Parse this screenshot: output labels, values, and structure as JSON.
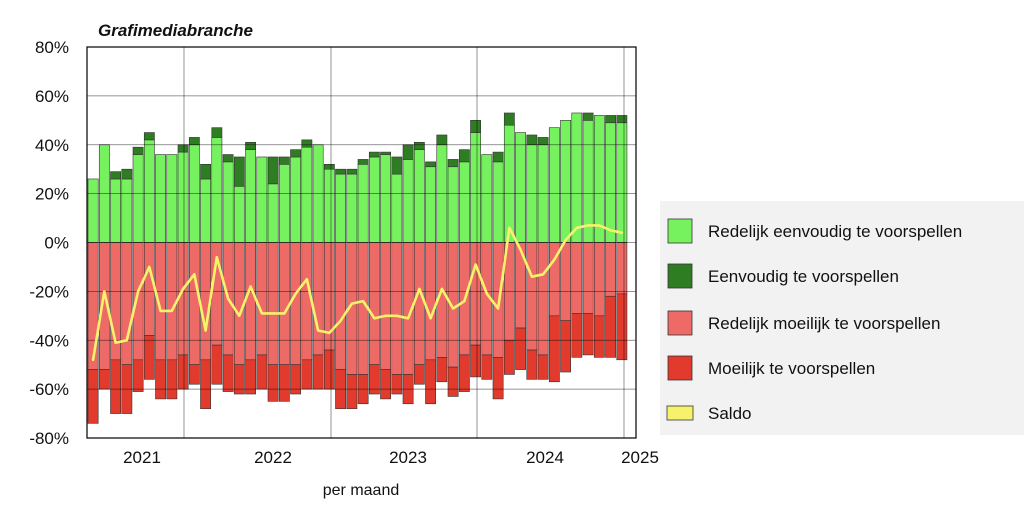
{
  "chart_data": {
    "type": "bar",
    "title": "Grafimediabranche",
    "xlabel": "per maand",
    "ylabel": "",
    "ylim": [
      -80,
      80
    ],
    "y_ticks": [
      "80%",
      "60%",
      "40%",
      "20%",
      "0%",
      "-20%",
      "-40%",
      "-60%",
      "-80%"
    ],
    "x_tick_labels": [
      "2021",
      "2022",
      "2023",
      "2024",
      "2025"
    ],
    "grid": true,
    "legend_position": "right",
    "series": [
      {
        "name": "Redelijk eenvoudig te voorspellen",
        "color": "#77f25f",
        "values": [
          26,
          40,
          26,
          26,
          36,
          42,
          36,
          36,
          37,
          40,
          26,
          43,
          33,
          23,
          38,
          35,
          24,
          32,
          35,
          39,
          40,
          30,
          28,
          28,
          32,
          35,
          36,
          28,
          34,
          38,
          31,
          40,
          31,
          33,
          45,
          36,
          33,
          48,
          45,
          40,
          40,
          47,
          50,
          53,
          50,
          52,
          49,
          49
        ]
      },
      {
        "name": "Eenvoudig te voorspellen",
        "color": "#2e7d23",
        "values": [
          0,
          0,
          3,
          4,
          3,
          3,
          0,
          0,
          3,
          3,
          6,
          4,
          3,
          12,
          3,
          0,
          11,
          3,
          3,
          3,
          0,
          2,
          2,
          2,
          2,
          2,
          1,
          7,
          6,
          3,
          2,
          4,
          3,
          5,
          5,
          0,
          4,
          5,
          0,
          4,
          3,
          0,
          0,
          0,
          3,
          0,
          3,
          3
        ]
      },
      {
        "name": "Redelijk moeilijk te voorspellen",
        "color": "#ee6a66",
        "values": [
          -52,
          -52,
          -48,
          -50,
          -48,
          -38,
          -48,
          -48,
          -46,
          -50,
          -48,
          -42,
          -46,
          -50,
          -48,
          -46,
          -50,
          -50,
          -50,
          -48,
          -46,
          -44,
          -52,
          -54,
          -54,
          -50,
          -52,
          -54,
          -54,
          -50,
          -48,
          -47,
          -51,
          -46,
          -42,
          -46,
          -47,
          -40,
          -35,
          -44,
          -46,
          -30,
          -32,
          -29,
          -29,
          -30,
          -22,
          -21
        ]
      },
      {
        "name": "Moeilijk te voorspellen",
        "color": "#e23a2c",
        "values": [
          -22,
          -8,
          -22,
          -20,
          -13,
          -18,
          -16,
          -16,
          -14,
          -8,
          -20,
          -16,
          -15,
          -12,
          -14,
          -14,
          -15,
          -15,
          -12,
          -12,
          -14,
          -16,
          -16,
          -14,
          -12,
          -12,
          -12,
          -8,
          -12,
          -8,
          -18,
          -10,
          -12,
          -15,
          -13,
          -10,
          -17,
          -14,
          -17,
          -12,
          -10,
          -27,
          -21,
          -18,
          -17,
          -17,
          -25,
          -27
        ]
      },
      {
        "name": "Saldo",
        "color": "#f7f26b",
        "type": "line",
        "values": [
          -48,
          -20,
          -41,
          -40,
          -20,
          -10,
          -28,
          -28,
          -19,
          -13,
          -36,
          -6,
          -23,
          -30,
          -18,
          -29,
          -29,
          -29,
          -21,
          -15,
          -36,
          -37,
          -32,
          -25,
          -24,
          -31,
          -30,
          -30,
          -31,
          -19,
          -31,
          -19,
          -27,
          -24,
          -9,
          -21,
          -27,
          6,
          -3,
          -14,
          -13,
          -7,
          1,
          6,
          7,
          7,
          5,
          4
        ]
      }
    ]
  }
}
